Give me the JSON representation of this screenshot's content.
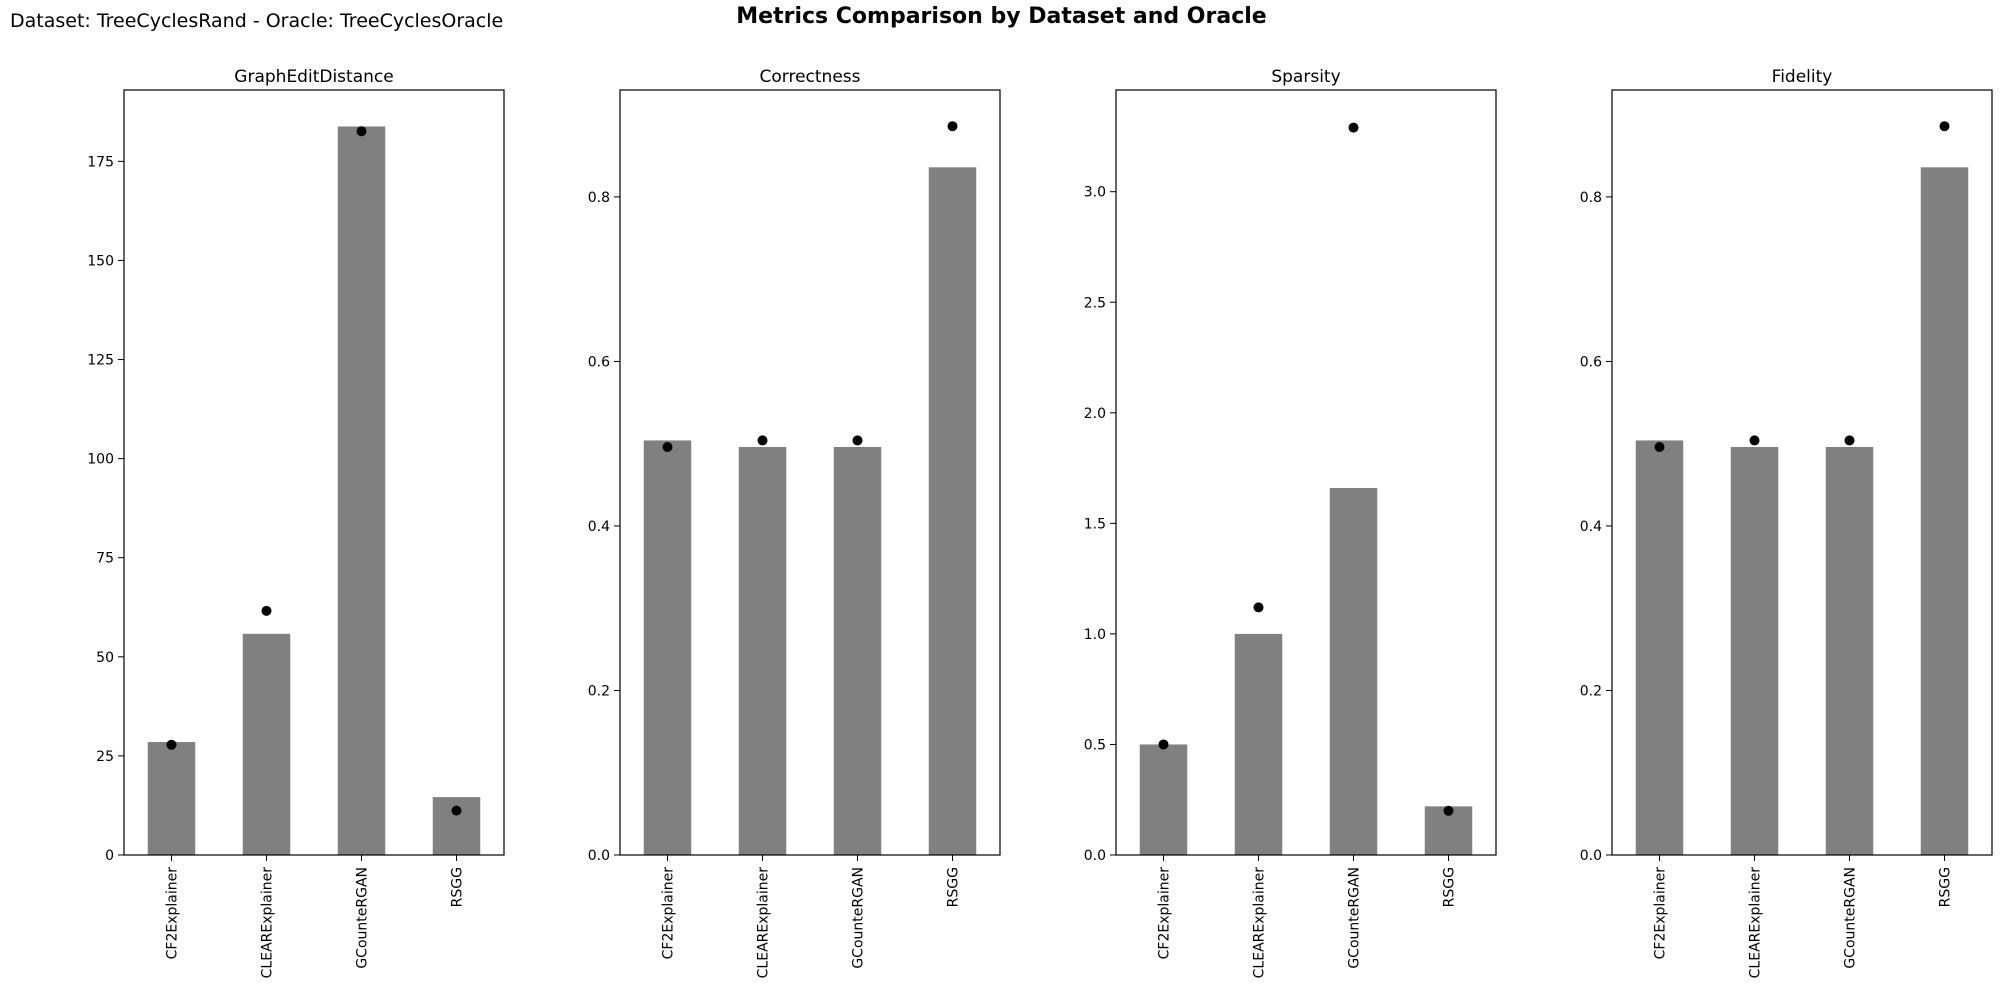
{
  "header": {
    "suptitle": "Metrics Comparison by Dataset and Oracle",
    "subtitle": "Dataset: TreeCyclesRand - Oracle: TreeCyclesOracle"
  },
  "colors": {
    "bar": "#808080",
    "marker": "#000000",
    "axes": "#000000"
  },
  "chart_data": [
    {
      "type": "bar",
      "title": "GraphEditDistance",
      "categories": [
        "CF2Explainer",
        "CLEARExplainer",
        "GCounteRGAN",
        "RSGG"
      ],
      "series": [
        {
          "kind": "bar",
          "values": [
            28.5,
            55.8,
            183.8,
            14.6
          ]
        },
        {
          "kind": "scatter",
          "values": [
            27.8,
            61.6,
            182.6,
            11.2
          ]
        }
      ],
      "ylim": [
        0,
        193
      ],
      "yticks": [
        0,
        25,
        50,
        75,
        100,
        125,
        150,
        175
      ],
      "ytick_labels": [
        "0",
        "25",
        "50",
        "75",
        "100",
        "125",
        "150",
        "175"
      ],
      "grid": false
    },
    {
      "type": "bar",
      "title": "Correctness",
      "categories": [
        "CF2Explainer",
        "CLEARExplainer",
        "GCounteRGAN",
        "RSGG"
      ],
      "series": [
        {
          "kind": "bar",
          "values": [
            0.504,
            0.496,
            0.496,
            0.836
          ]
        },
        {
          "kind": "scatter",
          "values": [
            0.496,
            0.504,
            0.504,
            0.886
          ]
        }
      ],
      "ylim": [
        0,
        0.93
      ],
      "yticks": [
        0.0,
        0.2,
        0.4,
        0.6,
        0.8
      ],
      "ytick_labels": [
        "0.0",
        "0.2",
        "0.4",
        "0.6",
        "0.8"
      ],
      "grid": false
    },
    {
      "type": "bar",
      "title": "Sparsity",
      "categories": [
        "CF2Explainer",
        "CLEARExplainer",
        "GCounteRGAN",
        "RSGG"
      ],
      "series": [
        {
          "kind": "bar",
          "values": [
            0.5,
            1.0,
            1.66,
            0.22
          ]
        },
        {
          "kind": "scatter",
          "values": [
            0.5,
            1.12,
            3.29,
            0.2
          ]
        }
      ],
      "ylim": [
        0,
        3.46
      ],
      "yticks": [
        0.0,
        0.5,
        1.0,
        1.5,
        2.0,
        2.5,
        3.0
      ],
      "ytick_labels": [
        "0.0",
        "0.5",
        "1.0",
        "1.5",
        "2.0",
        "2.5",
        "3.0"
      ],
      "grid": false
    },
    {
      "type": "bar",
      "title": "Fidelity",
      "categories": [
        "CF2Explainer",
        "CLEARExplainer",
        "GCounteRGAN",
        "RSGG"
      ],
      "series": [
        {
          "kind": "bar",
          "values": [
            0.504,
            0.496,
            0.496,
            0.836
          ]
        },
        {
          "kind": "scatter",
          "values": [
            0.496,
            0.504,
            0.504,
            0.886
          ]
        }
      ],
      "ylim": [
        0,
        0.93
      ],
      "yticks": [
        0.0,
        0.2,
        0.4,
        0.6,
        0.8
      ],
      "ytick_labels": [
        "0.0",
        "0.2",
        "0.4",
        "0.6",
        "0.8"
      ],
      "grid": false
    }
  ]
}
